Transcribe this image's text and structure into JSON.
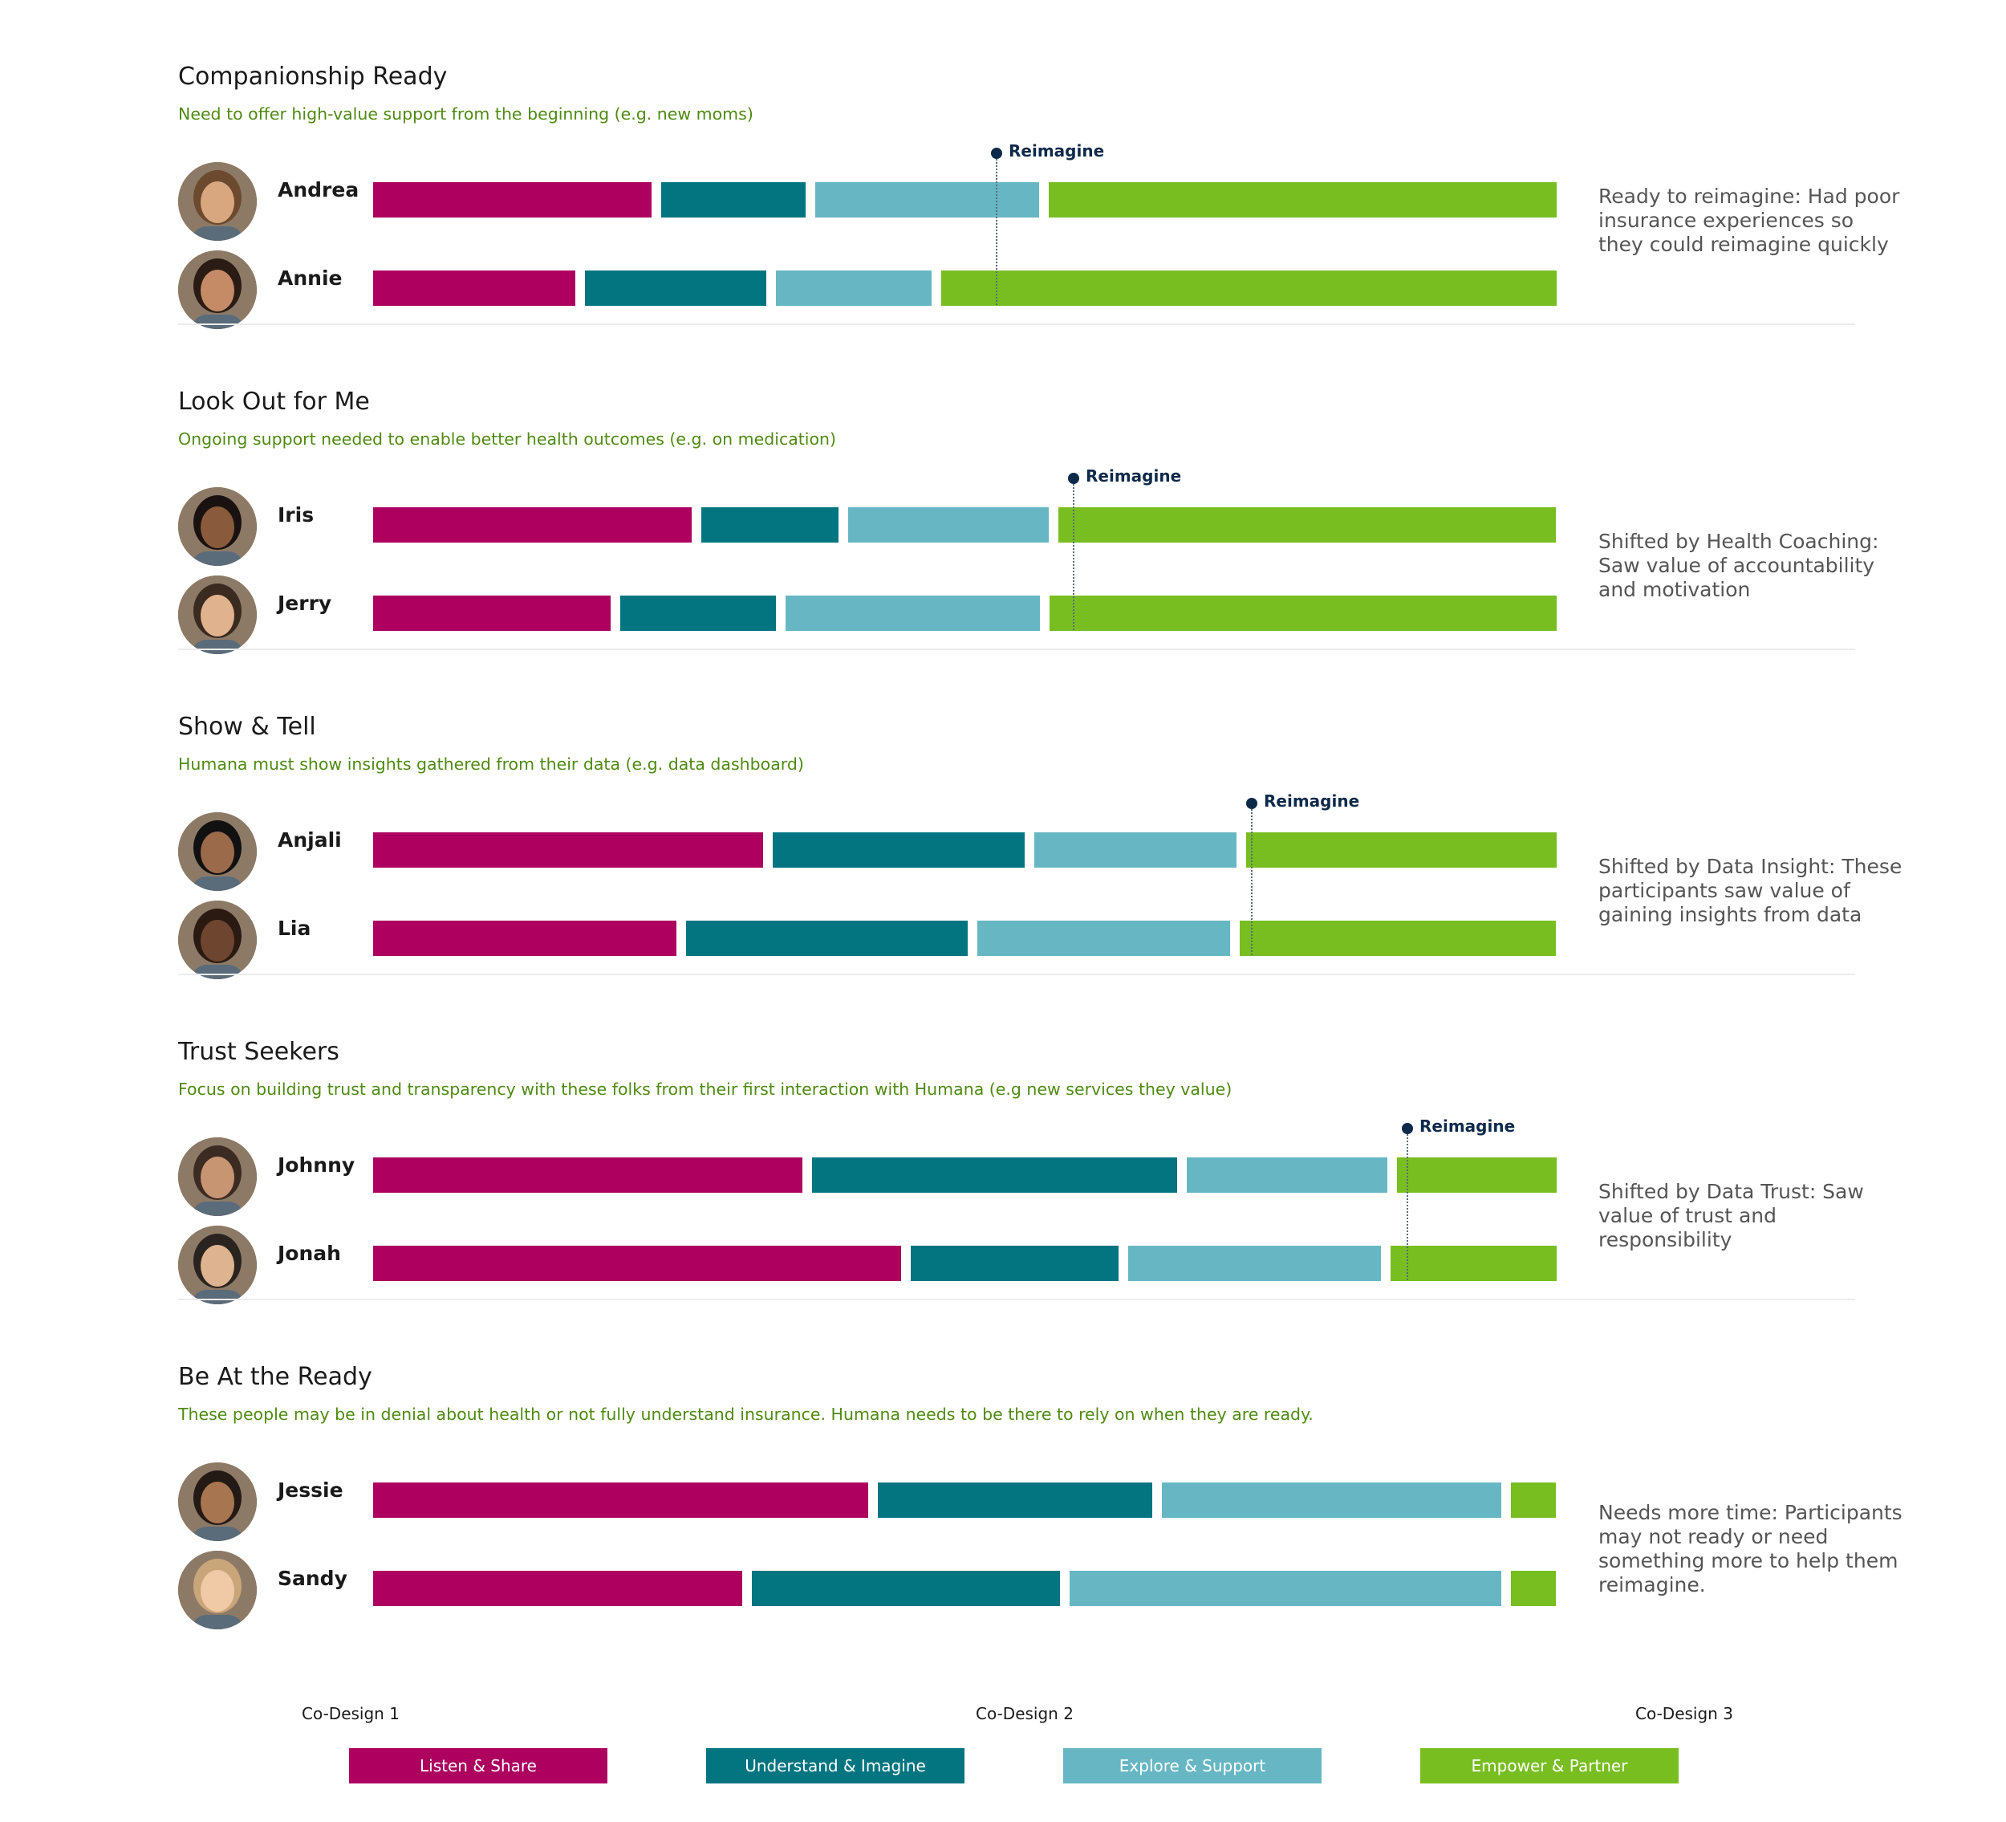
{
  "chart_data": {
    "type": "bar",
    "title": "",
    "stages": [
      "Listen & Share",
      "Understand & Imagine",
      "Explore & Support",
      "Empower & Partner"
    ],
    "colors": {
      "Listen & Share": "#ad005f",
      "Understand & Imagine": "#037580",
      "Explore & Support": "#66b7c3",
      "Empower & Partner": "#78be21"
    },
    "marker_label": "Reimagine",
    "phase_labels": [
      "Co-Design 1",
      "Co-Design 2",
      "Co-Design 3"
    ],
    "groups": [
      {
        "title": "Companionship Ready",
        "subtitle": "Need to offer high-value support from the beginning  (e.g. new moms)",
        "note": "Ready to reimagine: Had poor insurance experiences so they could reimagine quickly",
        "reimagine": 0.526,
        "people": [
          {
            "name": "Andrea",
            "segments": [
              0.241,
              0.125,
              0.194,
              0.44
            ]
          },
          {
            "name": "Annie",
            "segments": [
              0.175,
              0.157,
              0.135,
              0.533
            ]
          }
        ]
      },
      {
        "title": "Look Out for Me",
        "subtitle": "Ongoing support needed to enable better health outcomes (e.g. on medication)",
        "note": "Shifted by Health Coaching: Saw value of accountability and motivation",
        "reimagine": 0.591,
        "people": [
          {
            "name": "Iris",
            "segments": [
              0.276,
              0.119,
              0.174,
              0.431
            ]
          },
          {
            "name": "Jerry",
            "segments": [
              0.206,
              0.135,
              0.22,
              0.439
            ]
          }
        ]
      },
      {
        "title": "Show & Tell",
        "subtitle": "Humana must show insights gathered from their data (e.g. data dashboard)",
        "note": "Shifted by Data Insight: These participants saw value of  gaining insights from data",
        "reimagine": 0.742,
        "people": [
          {
            "name": "Anjali",
            "segments": [
              0.338,
              0.218,
              0.175,
              0.269
            ]
          },
          {
            "name": "Lia",
            "segments": [
              0.263,
              0.244,
              0.219,
              0.274
            ]
          }
        ]
      },
      {
        "title": "Trust Seekers",
        "subtitle": "Focus on building trust and transparency with these folks from their first interaction with Humana (e.g new services they value)",
        "note": "Shifted by Data Trust: Saw value of trust and responsibility",
        "reimagine": 0.873,
        "people": [
          {
            "name": "Johnny",
            "segments": [
              0.372,
              0.316,
              0.174,
              0.138
            ]
          },
          {
            "name": "Jonah",
            "segments": [
              0.457,
              0.18,
              0.219,
              0.144
            ]
          }
        ]
      },
      {
        "title": "Be At the Ready",
        "subtitle": "These people may be in denial about health or not fully understand insurance. Humana needs to be there to rely on when they are ready.",
        "note": "Needs more time: Participants may not ready or need something more to help them reimagine.",
        "reimagine": null,
        "people": [
          {
            "name": "Jessie",
            "segments": [
              0.429,
              0.238,
              0.294,
              0.039
            ]
          },
          {
            "name": "Sandy",
            "segments": [
              0.32,
              0.267,
              0.374,
              0.039
            ]
          }
        ]
      }
    ]
  }
}
